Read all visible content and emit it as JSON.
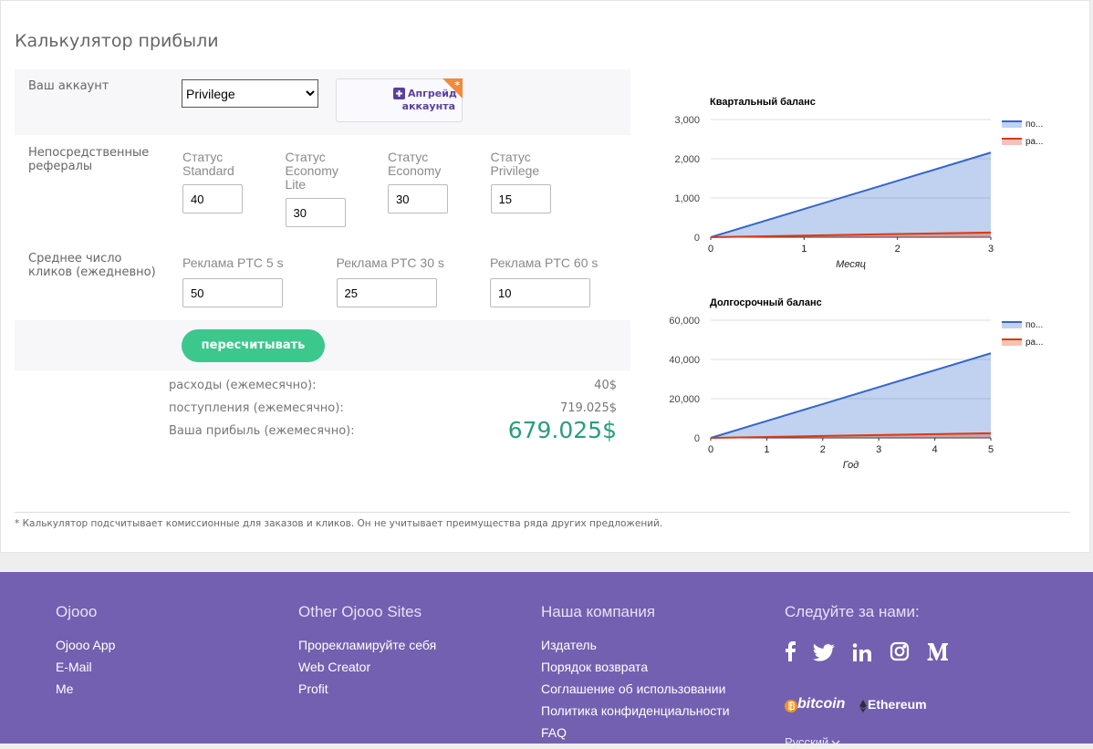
{
  "calculator": {
    "title": "Калькулятор прибыли",
    "account_label": "Ваш аккаунт",
    "account_select": "Privilege",
    "upgrade_button": "Апгрейд аккаунта",
    "upgrade_badge": "*",
    "referrals_label": "Непосредственные рефералы",
    "referral_fields": [
      {
        "label": "Статус Standard",
        "value": "40"
      },
      {
        "label": "Статус Economy Lite",
        "value": "30"
      },
      {
        "label": "Статус Economy",
        "value": "30"
      },
      {
        "label": "Статус Privilege",
        "value": "15"
      }
    ],
    "clicks_label": "Среднее число кликов (ежедневно)",
    "click_fields": [
      {
        "label": "Реклама PTC 5 s",
        "value": "50"
      },
      {
        "label": "Реклама PTC 30 s",
        "value": "25"
      },
      {
        "label": "Реклама PTC 60 s",
        "value": "10"
      }
    ],
    "recalc_button": "пересчитывать",
    "results": [
      {
        "label": "расходы (ежемесячно):",
        "value": "40$"
      },
      {
        "label": "поступления (ежемесячно):",
        "value": "719.025$"
      },
      {
        "label": "Ваша прибыль (ежемесячно):",
        "value": "679.025$"
      }
    ],
    "footnote": "* Калькулятор подсчитывает комиссионные для заказов и кликов. Он не учитывает преимущества ряда других предложений."
  },
  "chart_data": [
    {
      "type": "area",
      "title": "Квартальный баланс",
      "x_label": "Месяц",
      "x": [
        0,
        1,
        2,
        3
      ],
      "xlim": [
        0,
        3
      ],
      "xticks": [
        0,
        1,
        2,
        3
      ],
      "ylim": [
        0,
        3000
      ],
      "yticks": [
        0,
        {
          "value": 1000,
          "label": "1,000"
        },
        {
          "value": 2000,
          "label": "2,000"
        },
        {
          "value": 3000,
          "label": "3,000"
        }
      ],
      "grid": true,
      "legend": "right",
      "series": [
        {
          "name": "по...",
          "color": "#3366cc",
          "values": [
            0,
            719,
            1438,
            2157
          ]
        },
        {
          "name": "ра...",
          "color": "#dc3912",
          "values": [
            0,
            40,
            80,
            120
          ]
        }
      ]
    },
    {
      "type": "area",
      "title": "Долгосрочный баланс",
      "x_label": "Год",
      "x": [
        0,
        1,
        2,
        3,
        4,
        5
      ],
      "xlim": [
        0,
        5
      ],
      "xticks": [
        0,
        1,
        2,
        3,
        4,
        5
      ],
      "ylim": [
        0,
        60000
      ],
      "yticks": [
        0,
        {
          "value": 20000,
          "label": "20,000"
        },
        {
          "value": 40000,
          "label": "40,000"
        },
        {
          "value": 60000,
          "label": "60,000"
        }
      ],
      "grid": true,
      "legend": "right",
      "series": [
        {
          "name": "по...",
          "color": "#3366cc",
          "values": [
            0,
            8628,
            17257,
            25885,
            34513,
            43142
          ]
        },
        {
          "name": "ра...",
          "color": "#dc3912",
          "values": [
            0,
            480,
            960,
            1440,
            1920,
            2400
          ]
        }
      ]
    }
  ],
  "footer": {
    "columns": [
      {
        "heading": "Ojooo",
        "links": [
          "Ojooo App",
          "E-Mail",
          "Me"
        ]
      },
      {
        "heading": "Other Ojooo Sites",
        "links": [
          "Прорекламируйте себя",
          "Web Creator",
          "Profit"
        ]
      },
      {
        "heading": "Наша компания",
        "links": [
          "Издатель",
          "Порядок возврата",
          "Соглашение об использовании",
          "Политика конфиденциальности",
          "FAQ"
        ]
      }
    ],
    "social_heading": "Следуйте за нами:",
    "payments": [
      "bitcoin",
      "Ethereum"
    ],
    "language": "Русский"
  }
}
